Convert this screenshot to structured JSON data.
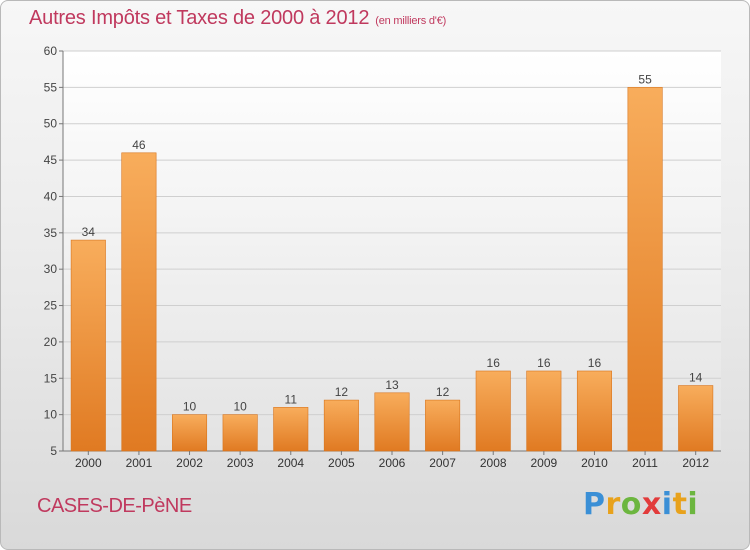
{
  "header": {
    "title": "Autres Impôts et Taxes de 2000 à 2012",
    "unit": "(en milliers d'€)"
  },
  "footer": {
    "commune": "CASES-DE-PèNE",
    "logo_letters": [
      {
        "ch": "P",
        "color": "#3a8fd6"
      },
      {
        "ch": "r",
        "color": "#e8a21c"
      },
      {
        "ch": "o",
        "color": "#6cb63f"
      },
      {
        "ch": "x",
        "color": "#e23b3b"
      },
      {
        "ch": "i",
        "color": "#3a8fd6"
      },
      {
        "ch": "t",
        "color": "#e8a21c"
      },
      {
        "ch": "i",
        "color": "#6cb63f"
      }
    ]
  },
  "colors": {
    "bar_top": "#f8ad5c",
    "bar_bottom": "#e07a22",
    "bar_stroke": "#d8741c",
    "title": "#c0395e",
    "plot_bg_top": "#ffffff",
    "plot_bg_bottom": "#e3e3e3",
    "grid": "#cfcfcf"
  },
  "chart_data": {
    "type": "bar",
    "title": "Autres Impôts et Taxes de 2000 à 2012",
    "xlabel": "",
    "ylabel": "",
    "categories": [
      "2000",
      "2001",
      "2002",
      "2003",
      "2004",
      "2005",
      "2006",
      "2007",
      "2008",
      "2009",
      "2010",
      "2011",
      "2012"
    ],
    "values": [
      34,
      46,
      10,
      10,
      11,
      12,
      13,
      12,
      16,
      16,
      16,
      55,
      14
    ],
    "ylim": [
      5,
      60
    ],
    "yticks": [
      5,
      10,
      15,
      20,
      25,
      30,
      35,
      40,
      45,
      50,
      55,
      60
    ],
    "grid": true,
    "data_labels": true
  }
}
